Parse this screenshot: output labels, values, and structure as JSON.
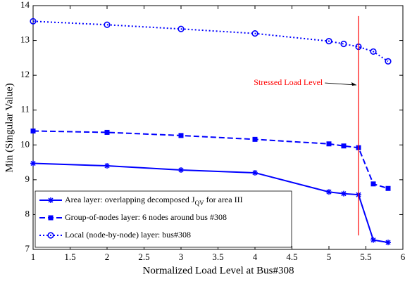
{
  "chart_data": {
    "type": "line",
    "x_label": "Normalized Load Level at Bus#308",
    "y_label": "Min (Singular Value)",
    "xlim": [
      1,
      6
    ],
    "ylim": [
      7,
      14
    ],
    "xticks": [
      1,
      1.5,
      2,
      2.5,
      3,
      3.5,
      4,
      4.5,
      5,
      5.5,
      6
    ],
    "yticks": [
      7,
      8,
      9,
      10,
      11,
      12,
      13,
      14
    ],
    "grid": false,
    "legend": "lower left",
    "series": [
      {
        "name_parts": [
          "Area layer: overlapping decomposed J",
          "QV",
          " for area III"
        ],
        "color": "#0000ff",
        "style": "solid",
        "marker": "star",
        "x": [
          1,
          2,
          3,
          4,
          5,
          5.2,
          5.4,
          5.6,
          5.8
        ],
        "values": [
          9.47,
          9.4,
          9.28,
          9.2,
          8.65,
          8.6,
          8.57,
          7.27,
          7.2
        ]
      },
      {
        "name_parts": [
          "Group-of-nodes layer: 6 nodes around bus #308"
        ],
        "color": "#0000ff",
        "style": "dashed",
        "marker": "square",
        "x": [
          1,
          2,
          3,
          4,
          5,
          5.2,
          5.4,
          5.6,
          5.8
        ],
        "values": [
          10.4,
          10.36,
          10.27,
          10.16,
          10.03,
          9.97,
          9.92,
          8.88,
          8.75
        ]
      },
      {
        "name_parts": [
          "Local (node-by-node) layer: bus#308"
        ],
        "color": "#0000ff",
        "style": "dotted",
        "marker": "circle",
        "x": [
          1,
          2,
          3,
          4,
          5,
          5.2,
          5.4,
          5.6,
          5.8
        ],
        "values": [
          13.55,
          13.45,
          13.33,
          13.2,
          12.98,
          12.9,
          12.82,
          12.68,
          12.4
        ]
      }
    ],
    "annotation": {
      "text": "Stressed Load Level",
      "color": "#ff0000",
      "x": 5.4,
      "ymin": 7.4,
      "ymax": 13.7,
      "text_x": 4.45,
      "text_y": 11.78
    }
  }
}
